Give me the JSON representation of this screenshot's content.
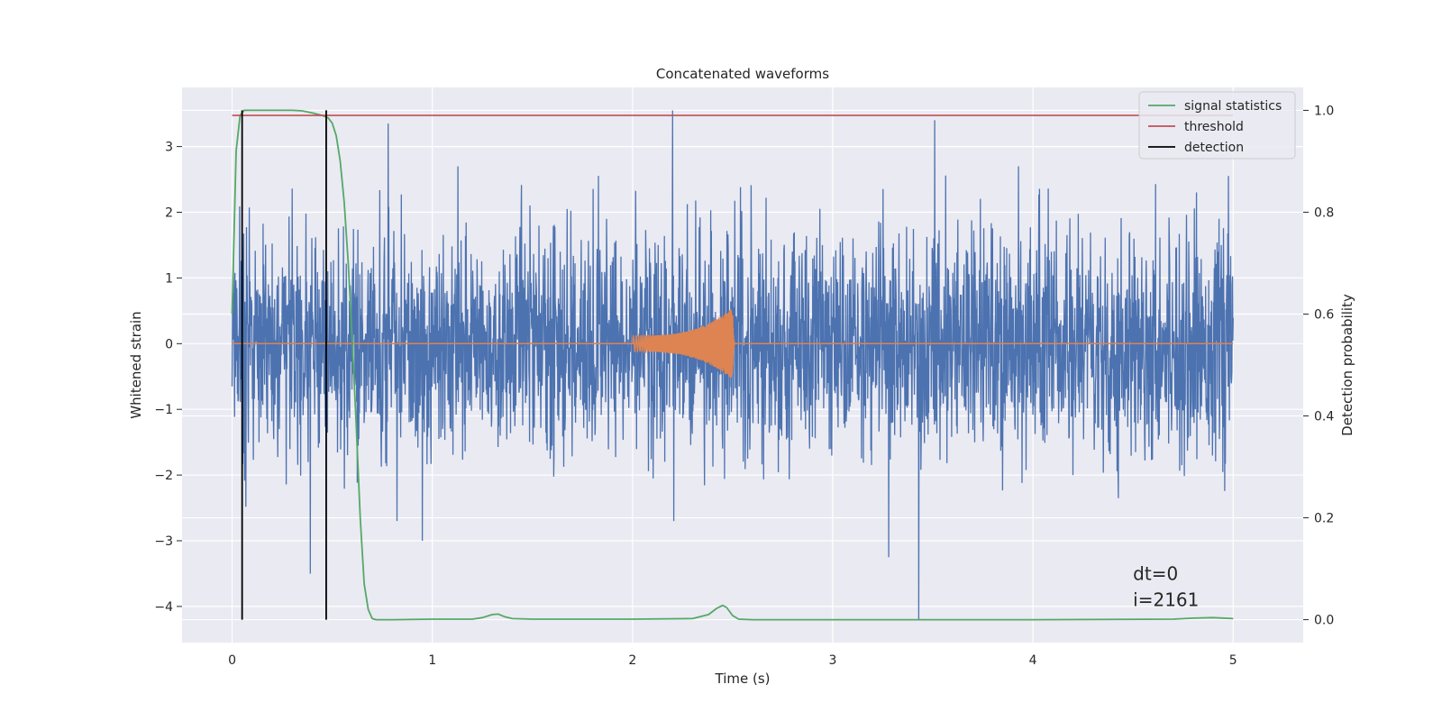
{
  "chart_data": {
    "type": "line",
    "title": "Concatenated waveforms",
    "xlabel": "Time (s)",
    "ylabel": "Whitened strain",
    "y2label": "Detection probability",
    "xlim": [
      -0.25,
      5.35
    ],
    "ylim": [
      -4.55,
      3.9
    ],
    "y2lim": [
      -0.045,
      1.045
    ],
    "xticks": [
      0,
      1,
      2,
      3,
      4,
      5
    ],
    "yticks": [
      -4,
      -3,
      -2,
      -1,
      0,
      1,
      2,
      3
    ],
    "y2ticks": [
      0.0,
      0.2,
      0.4,
      0.6,
      0.8,
      1.0
    ],
    "xtick_labels": [
      "0",
      "1",
      "2",
      "3",
      "4",
      "5"
    ],
    "ytick_labels": [
      "−4",
      "−3",
      "−2",
      "−1",
      "0",
      "1",
      "2",
      "3"
    ],
    "y2tick_labels": [
      "0.0",
      "0.2",
      "0.4",
      "0.6",
      "0.8",
      "1.0"
    ],
    "grid": true,
    "legend_position": "top-right",
    "legend": [
      {
        "label": "signal statistics",
        "color": "#55a868"
      },
      {
        "label": "threshold",
        "color": "#c44e52"
      },
      {
        "label": "detection",
        "color": "#000000"
      }
    ],
    "series": [
      {
        "type": "noise-band",
        "color": "#4c72b0",
        "x_range": [
          0,
          5
        ],
        "typical_envelope": [
          -2.2,
          2.2
        ],
        "outlier_spikes": [
          {
            "x": 0.39,
            "y": -3.5
          },
          {
            "x": 0.78,
            "y": 3.35
          },
          {
            "x": 0.95,
            "y": -3.0
          },
          {
            "x": 2.2,
            "y": 3.55
          },
          {
            "x": 3.28,
            "y": -3.25
          },
          {
            "x": 3.43,
            "y": -4.2
          },
          {
            "x": 3.51,
            "y": 3.4
          }
        ]
      },
      {
        "type": "chirp",
        "color": "#dd8452",
        "x_range": [
          2.0,
          2.51
        ],
        "amplitude_start": 0.12,
        "amplitude_peak": 0.55,
        "peak_x": 2.5
      },
      {
        "name": "signal statistics",
        "axis": "right",
        "color": "#55a868",
        "x": [
          0.0,
          0.02,
          0.04,
          0.06,
          0.08,
          0.1,
          0.2,
          0.3,
          0.35,
          0.4,
          0.45,
          0.48,
          0.5,
          0.52,
          0.54,
          0.56,
          0.58,
          0.6,
          0.62,
          0.64,
          0.66,
          0.68,
          0.7,
          0.72,
          0.8,
          1.0,
          1.2,
          1.25,
          1.3,
          1.33,
          1.36,
          1.4,
          1.5,
          2.0,
          2.3,
          2.38,
          2.42,
          2.45,
          2.47,
          2.5,
          2.53,
          2.6,
          3.0,
          4.0,
          4.7,
          4.8,
          4.9,
          5.0
        ],
        "y": [
          0.6,
          0.92,
          0.99,
          1.0,
          1.0,
          1.0,
          1.0,
          1.0,
          0.999,
          0.995,
          0.99,
          0.985,
          0.975,
          0.95,
          0.9,
          0.82,
          0.7,
          0.55,
          0.38,
          0.2,
          0.07,
          0.02,
          0.002,
          0.0,
          0.0,
          0.001,
          0.001,
          0.004,
          0.01,
          0.011,
          0.006,
          0.002,
          0.001,
          0.001,
          0.002,
          0.01,
          0.022,
          0.028,
          0.024,
          0.008,
          0.001,
          0.0,
          0.0,
          0.0,
          0.001,
          0.003,
          0.004,
          0.002
        ]
      },
      {
        "name": "threshold",
        "axis": "right",
        "color": "#c44e52",
        "x": [
          0,
          5
        ],
        "y": [
          0.99,
          0.99
        ]
      },
      {
        "name": "detection",
        "axis": "right",
        "color": "#000000",
        "type": "vlines",
        "x": [
          0.05,
          0.47
        ],
        "ymin": 0.0,
        "ymax": 1.0
      }
    ],
    "annotation": {
      "lines": [
        "dt=0",
        "i=2161"
      ],
      "x": 4.5,
      "y": -3.6
    }
  }
}
